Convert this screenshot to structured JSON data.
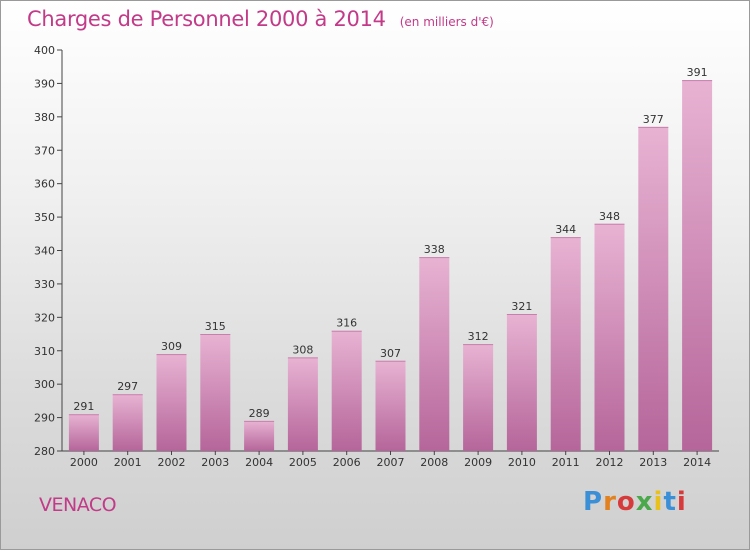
{
  "header": {
    "title": "Charges de Personnel 2000 à 2014",
    "unit_note": "(en milliers d'€)"
  },
  "footer": {
    "town": "VENACO",
    "logo_text": "Proxiti"
  },
  "colors": {
    "accent": "#c23a88",
    "bar_top": "#e6aed1",
    "bar_bottom": "#b8679a"
  },
  "chart_data": {
    "type": "bar",
    "title": "Charges de Personnel 2000 à 2014",
    "subtitle": "(en milliers d'€)",
    "xlabel": "",
    "ylabel": "",
    "categories": [
      "2000",
      "2001",
      "2002",
      "2003",
      "2004",
      "2005",
      "2006",
      "2007",
      "2008",
      "2009",
      "2010",
      "2011",
      "2012",
      "2013",
      "2014"
    ],
    "values": [
      291,
      297,
      309,
      315,
      289,
      308,
      316,
      307,
      338,
      312,
      321,
      344,
      348,
      377,
      391
    ],
    "ylim": [
      280,
      400
    ],
    "yticks": [
      280,
      290,
      300,
      310,
      320,
      330,
      340,
      350,
      360,
      370,
      380,
      390,
      400
    ],
    "grid": false,
    "legend": "none",
    "data_labels": true
  }
}
